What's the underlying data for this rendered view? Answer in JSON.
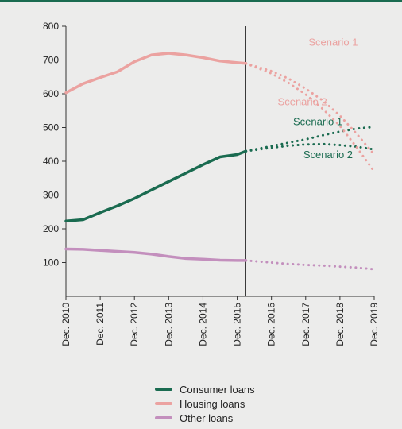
{
  "chart_data": {
    "type": "line",
    "title": "",
    "xlabel": "",
    "ylabel": "",
    "ylim": [
      0,
      800
    ],
    "yticks": [
      100,
      200,
      300,
      400,
      500,
      600,
      700,
      800
    ],
    "xlim": [
      2010.917,
      2019.917
    ],
    "xtick_labels": [
      "Dec. 2010",
      "Dec. 2011",
      "Dec. 2012",
      "Dec. 2013",
      "Dec. 2014",
      "Dec. 2015",
      "Dec. 2016",
      "Dec. 2017",
      "Dec. 2018",
      "Dec. 2019"
    ],
    "projection_start": 2016.17,
    "legend_position": "bottom",
    "series": [
      {
        "name": "Consumer loans",
        "color": "#1a6b50",
        "style": "solid",
        "x": [
          2010.917,
          2011.417,
          2011.917,
          2012.417,
          2012.917,
          2013.417,
          2013.917,
          2014.417,
          2014.917,
          2015.417,
          2015.917,
          2016.17
        ],
        "y": [
          223,
          227,
          248,
          268,
          290,
          315,
          340,
          365,
          390,
          413,
          420,
          430
        ]
      },
      {
        "name": "Housing loans",
        "color": "#eba2a0",
        "style": "solid",
        "x": [
          2010.917,
          2011.417,
          2011.917,
          2012.417,
          2012.917,
          2013.417,
          2013.917,
          2014.417,
          2014.917,
          2015.417,
          2015.917,
          2016.17
        ],
        "y": [
          603,
          630,
          648,
          665,
          695,
          715,
          720,
          715,
          707,
          697,
          692,
          690
        ]
      },
      {
        "name": "Other loans",
        "color": "#c38fbd",
        "style": "solid",
        "x": [
          2010.917,
          2011.417,
          2011.917,
          2012.417,
          2012.917,
          2013.417,
          2013.917,
          2014.417,
          2014.917,
          2015.417,
          2015.917,
          2016.17
        ],
        "y": [
          140,
          139,
          136,
          133,
          130,
          125,
          118,
          112,
          110,
          107,
          106,
          106
        ]
      },
      {
        "name": "Consumer loans Scenario 1",
        "color": "#1a6b50",
        "style": "dotted",
        "x": [
          2016.17,
          2016.917,
          2017.417,
          2017.917,
          2018.417,
          2018.917,
          2019.417,
          2019.917
        ],
        "y": [
          430,
          445,
          455,
          465,
          477,
          488,
          497,
          502
        ]
      },
      {
        "name": "Consumer loans Scenario 2",
        "color": "#1a6b50",
        "style": "dotted",
        "x": [
          2016.17,
          2016.917,
          2017.417,
          2017.917,
          2018.417,
          2018.917,
          2019.417,
          2019.917
        ],
        "y": [
          430,
          440,
          446,
          450,
          451,
          448,
          443,
          435
        ]
      },
      {
        "name": "Housing loans Scenario 1",
        "color": "#eba2a0",
        "style": "dotted",
        "x": [
          2016.17,
          2016.917,
          2017.417,
          2017.917,
          2018.417,
          2018.917,
          2019.417,
          2019.917
        ],
        "y": [
          690,
          667,
          645,
          615,
          580,
          535,
          480,
          420
        ]
      },
      {
        "name": "Housing loans Scenario 2",
        "color": "#eba2a0",
        "style": "dotted",
        "x": [
          2016.17,
          2016.917,
          2017.417,
          2017.917,
          2018.417,
          2018.917,
          2019.417,
          2019.917
        ],
        "y": [
          690,
          660,
          632,
          598,
          555,
          505,
          440,
          370
        ]
      },
      {
        "name": "Other loans Scenario",
        "color": "#c38fbd",
        "style": "dotted",
        "x": [
          2016.17,
          2016.917,
          2017.417,
          2017.917,
          2018.417,
          2018.917,
          2019.417,
          2019.917
        ],
        "y": [
          106,
          100,
          96,
          93,
          91,
          88,
          85,
          80
        ]
      }
    ],
    "annotations": [
      {
        "text": "Scenario 1",
        "color": "#eba2a0",
        "x": 2018.0,
        "y": 742
      },
      {
        "text": "Scenario 2",
        "color": "#eba2a0",
        "x": 2017.1,
        "y": 566
      },
      {
        "text": "Scenario 1",
        "color": "#1a6b50",
        "x": 2017.55,
        "y": 507
      },
      {
        "text": "Scenario 2",
        "color": "#1a6b50",
        "x": 2017.85,
        "y": 410
      }
    ],
    "legend": [
      {
        "label": "Consumer loans",
        "color": "#1a6b50"
      },
      {
        "label": "Housing loans",
        "color": "#eba2a0"
      },
      {
        "label": "Other loans",
        "color": "#c38fbd"
      }
    ]
  }
}
